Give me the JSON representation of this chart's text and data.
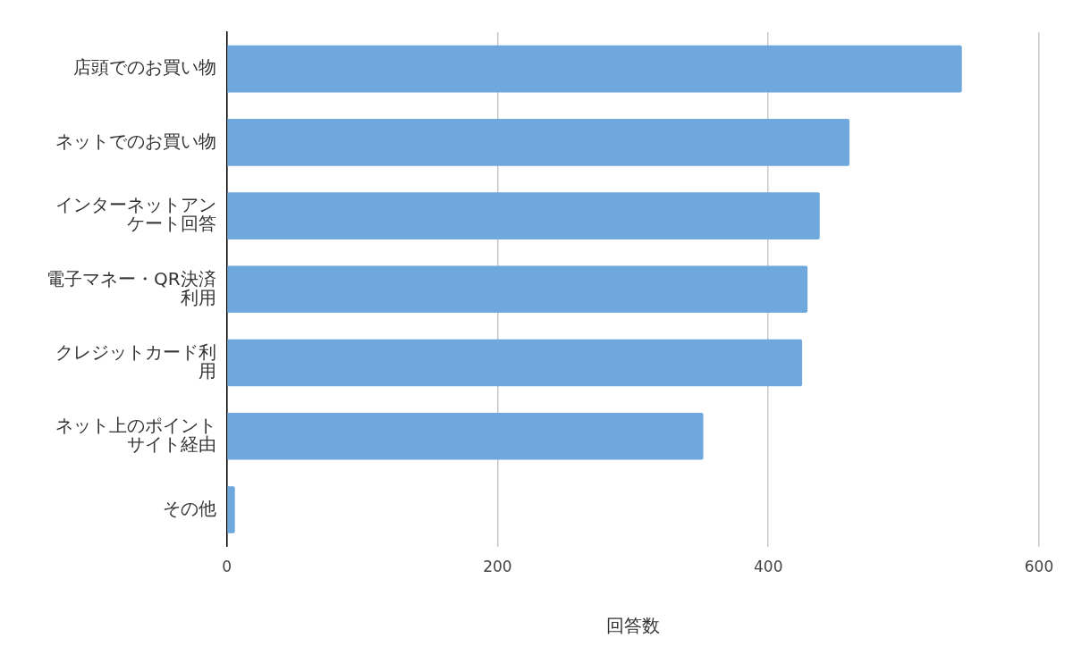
{
  "chart_data": {
    "type": "bar",
    "orientation": "horizontal",
    "xlabel": "回答数",
    "categories": [
      "店頭でのお買い物",
      "ネットでのお買い物",
      "インターネットアンケート回答",
      "電子マネー・QR決済利用",
      "クレジットカード利用",
      "ネット上のポイントサイト経由",
      "その他"
    ],
    "values": [
      543,
      460,
      438,
      429,
      425,
      352,
      6
    ],
    "color": "#6fa8dc",
    "xlim": [
      0,
      600
    ],
    "xticks": [
      0,
      200,
      400,
      600
    ],
    "grid": "x",
    "legend": false
  }
}
